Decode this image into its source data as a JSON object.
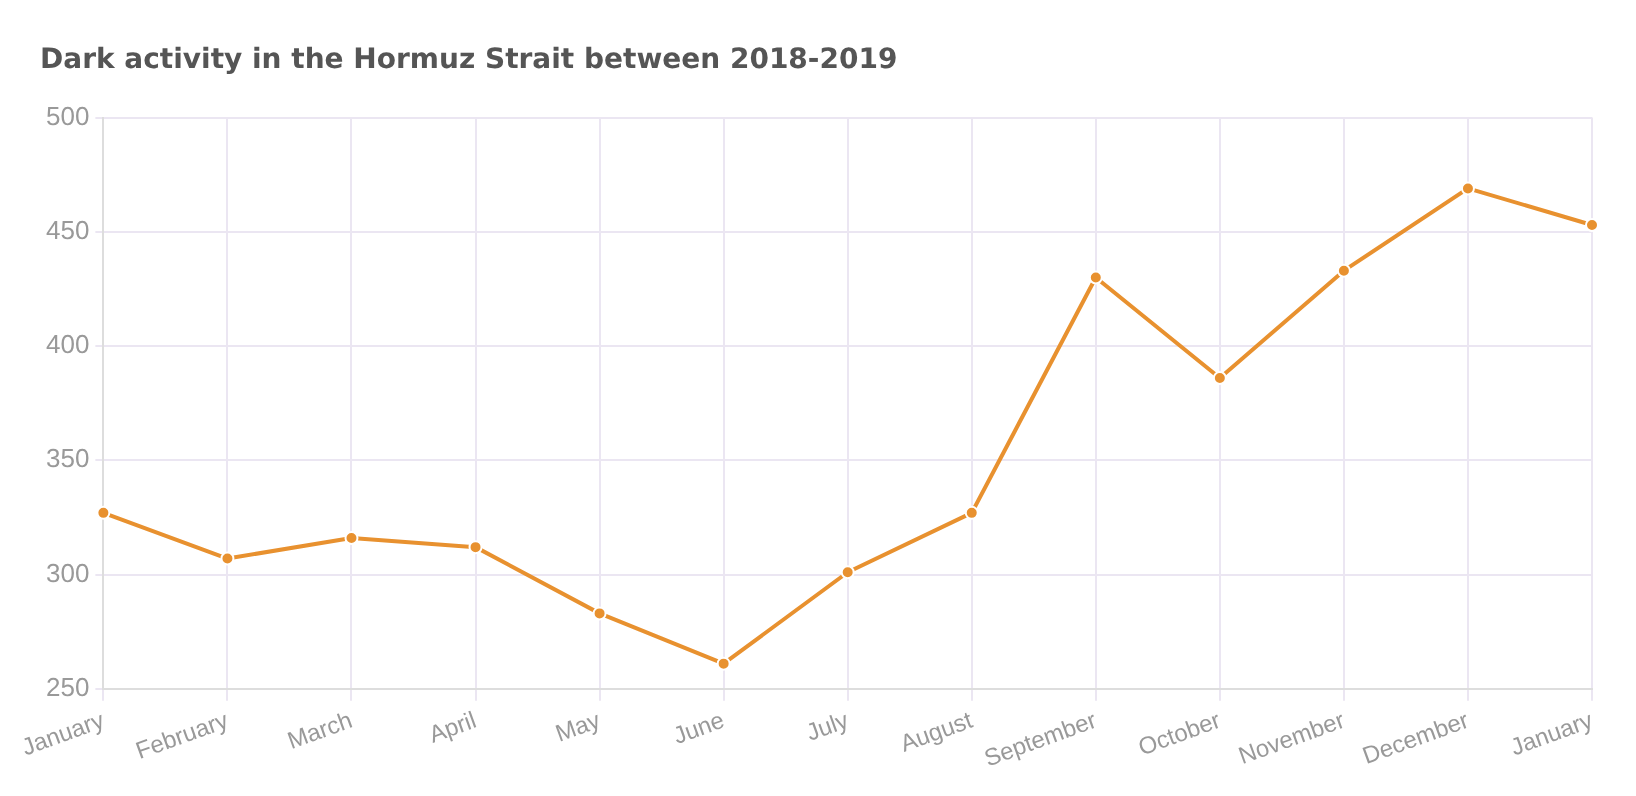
{
  "chart_data": {
    "type": "line",
    "title": "Dark activity in the Hormuz Strait between 2018-2019",
    "categories": [
      "January",
      "February",
      "March",
      "April",
      "May",
      "June",
      "July",
      "August",
      "September",
      "October",
      "November",
      "December",
      "January"
    ],
    "series": [
      {
        "color": "#e8912f",
        "values": [
          327,
          307,
          316,
          312,
          283,
          261,
          301,
          327,
          430,
          386,
          433,
          469,
          453
        ]
      }
    ],
    "ylim": [
      250,
      500
    ],
    "yticks": [
      250,
      300,
      350,
      400,
      450,
      500
    ],
    "grid": true,
    "legend": false,
    "marker": "circle",
    "line_style": "solid"
  }
}
